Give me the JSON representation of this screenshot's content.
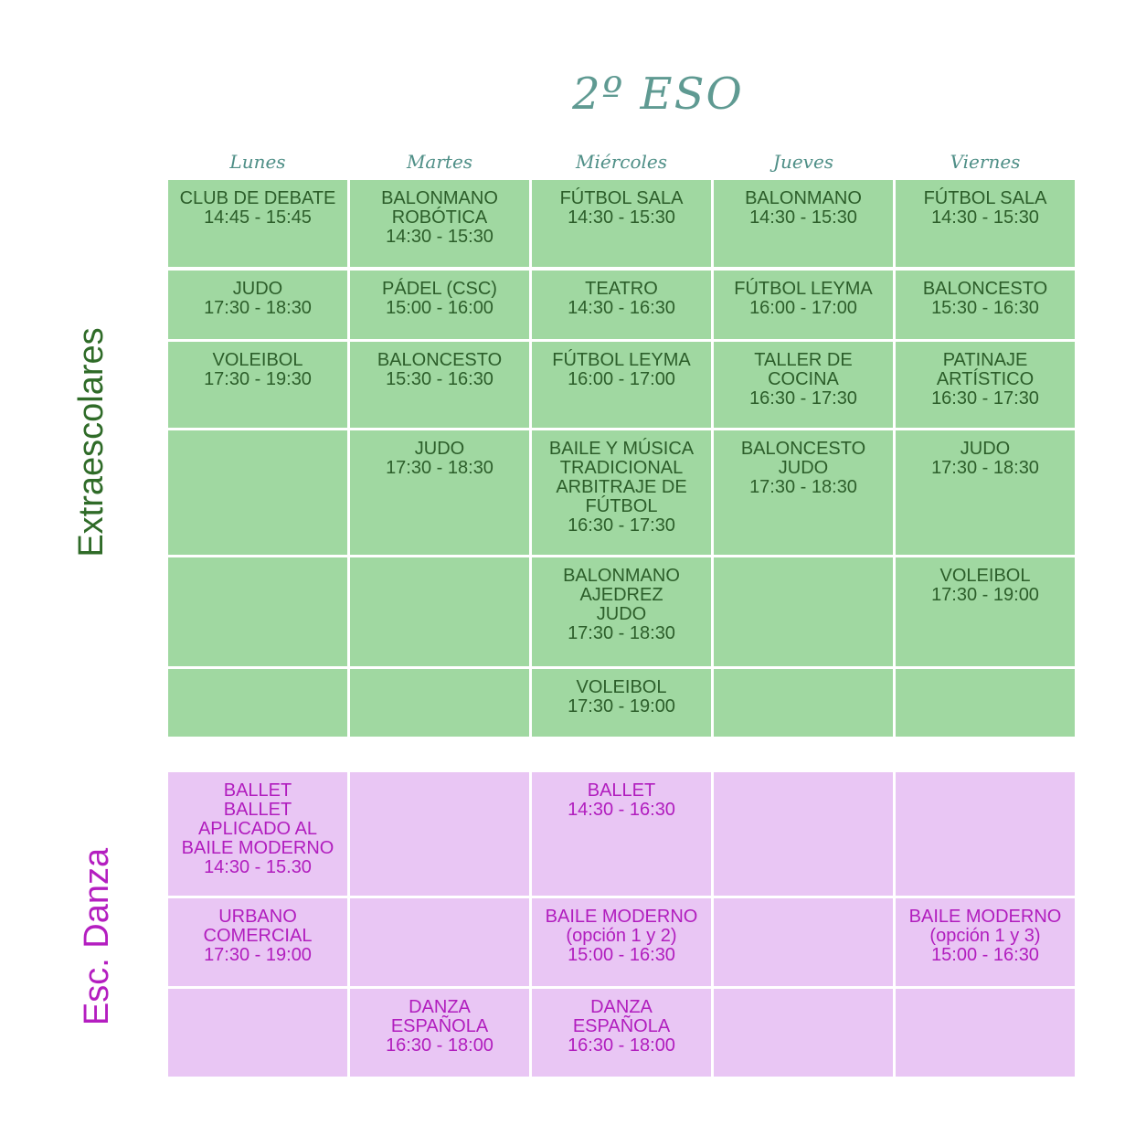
{
  "title": "2º ESO",
  "days": [
    "Lunes",
    "Martes",
    "Miércoles",
    "Jueves",
    "Viernes"
  ],
  "sections": {
    "extraescolares": "Extraescolares",
    "danza": "Esc. Danza"
  },
  "extra_rows": [
    [
      [
        "CLUB DE DEBATE",
        "14:45 - 15:45"
      ],
      [
        "BALONMANO",
        "ROBÓTICA",
        "14:30 - 15:30"
      ],
      [
        "FÚTBOL SALA",
        "14:30 - 15:30"
      ],
      [
        "BALONMANO",
        "14:30 - 15:30"
      ],
      [
        "FÚTBOL SALA",
        "14:30 - 15:30"
      ]
    ],
    [
      [
        "JUDO",
        "17:30 - 18:30"
      ],
      [
        "PÁDEL (CSC)",
        "15:00 - 16:00"
      ],
      [
        "TEATRO",
        "14:30 - 16:30"
      ],
      [
        "FÚTBOL LEYMA",
        "16:00 - 17:00"
      ],
      [
        "BALONCESTO",
        "15:30 - 16:30"
      ]
    ],
    [
      [
        "VOLEIBOL",
        "17:30 - 19:30"
      ],
      [
        "BALONCESTO",
        "15:30 - 16:30"
      ],
      [
        "FÚTBOL LEYMA",
        "16:00 - 17:00"
      ],
      [
        "TALLER DE",
        "COCINA",
        "16:30 - 17:30"
      ],
      [
        "PATINAJE",
        "ARTÍSTICO",
        "16:30 - 17:30"
      ]
    ],
    [
      [],
      [
        "JUDO",
        "17:30 - 18:30"
      ],
      [
        "BAILE Y MÚSICA",
        "TRADICIONAL",
        "ARBITRAJE DE",
        "FÚTBOL",
        "16:30 - 17:30"
      ],
      [
        "BALONCESTO",
        "JUDO",
        "17:30 - 18:30"
      ],
      [
        "JUDO",
        "17:30 - 18:30"
      ]
    ],
    [
      [],
      [],
      [
        "BALONMANO",
        "AJEDREZ",
        "JUDO",
        "17:30 - 18:30"
      ],
      [],
      [
        "VOLEIBOL",
        "17:30 - 19:00"
      ]
    ],
    [
      [],
      [],
      [
        "VOLEIBOL",
        "17:30 - 19:00"
      ],
      [],
      []
    ]
  ],
  "danza_rows": [
    [
      [
        "BALLET",
        "BALLET",
        "APLICADO AL",
        "BAILE MODERNO",
        "14:30 - 15.30"
      ],
      [],
      [
        "BALLET",
        "14:30 - 16:30"
      ],
      [],
      []
    ],
    [
      [
        "URBANO",
        "COMERCIAL",
        "17:30 - 19:00"
      ],
      [],
      [
        "BAILE MODERNO",
        "(opción 1 y 2)",
        "15:00 - 16:30"
      ],
      [],
      [
        "BAILE MODERNO",
        "(opción 1 y 3)",
        "15:00 - 16:30"
      ]
    ],
    [
      [],
      [
        "DANZA",
        "ESPAÑOLA",
        "16:30 - 18:00"
      ],
      [
        "DANZA",
        "ESPAÑOLA",
        "16:30 - 18:00"
      ],
      [],
      []
    ]
  ]
}
